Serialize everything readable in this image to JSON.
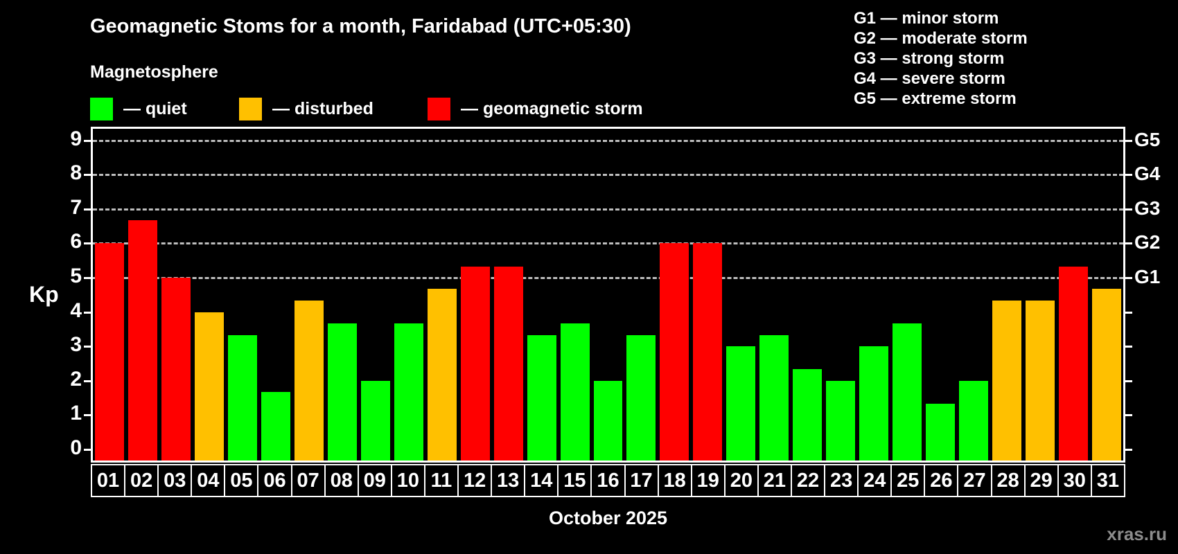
{
  "title": "Geomagnetic Stoms for a month, Faridabad (UTC+05:30)",
  "subtitle": "Magnetosphere",
  "legend": {
    "quiet": "— quiet",
    "disturbed": "— disturbed",
    "storm": "— geomagnetic storm"
  },
  "g_legend": [
    "G1 — minor storm",
    "G2 — moderate storm",
    "G3 — strong storm",
    "G4 — severe storm",
    "G5 — extreme storm"
  ],
  "colors": {
    "quiet": "#00ff00",
    "disturbed": "#ffc000",
    "storm": "#ff0000",
    "grid": "#bdbdbd",
    "axis": "#ffffff"
  },
  "watermark": "xras.ru",
  "chart_data": {
    "type": "bar",
    "title": "Geomagnetic Stoms for a month, Faridabad (UTC+05:30)",
    "xlabel": "October 2025",
    "ylabel": "Kp",
    "ylim": [
      0,
      9.4
    ],
    "grid": "dashed horizontal at Kp 5-9 only",
    "y_ticks": [
      0,
      1,
      2,
      3,
      4,
      5,
      6,
      7,
      8,
      9
    ],
    "right_axis": [
      {
        "kp": 5,
        "label": "G1"
      },
      {
        "kp": 6,
        "label": "G2"
      },
      {
        "kp": 7,
        "label": "G3"
      },
      {
        "kp": 8,
        "label": "G4"
      },
      {
        "kp": 9,
        "label": "G5"
      }
    ],
    "categories": [
      "01",
      "02",
      "03",
      "04",
      "05",
      "06",
      "07",
      "08",
      "09",
      "10",
      "11",
      "12",
      "13",
      "14",
      "15",
      "16",
      "17",
      "18",
      "19",
      "20",
      "21",
      "22",
      "23",
      "24",
      "25",
      "26",
      "27",
      "28",
      "29",
      "30",
      "31"
    ],
    "values": [
      6.0,
      6.67,
      5.0,
      4.0,
      3.33,
      1.67,
      4.33,
      3.67,
      2.0,
      3.67,
      4.67,
      5.33,
      5.33,
      3.33,
      3.67,
      2.0,
      3.33,
      6.0,
      6.0,
      3.0,
      3.33,
      2.33,
      2.0,
      3.0,
      3.67,
      1.33,
      2.0,
      4.33,
      4.33,
      5.33,
      4.67
    ],
    "statuses": [
      "storm",
      "storm",
      "storm",
      "disturbed",
      "quiet",
      "quiet",
      "disturbed",
      "quiet",
      "quiet",
      "quiet",
      "disturbed",
      "storm",
      "storm",
      "quiet",
      "quiet",
      "quiet",
      "quiet",
      "storm",
      "storm",
      "quiet",
      "quiet",
      "quiet",
      "quiet",
      "quiet",
      "quiet",
      "quiet",
      "quiet",
      "disturbed",
      "disturbed",
      "storm",
      "disturbed"
    ]
  }
}
